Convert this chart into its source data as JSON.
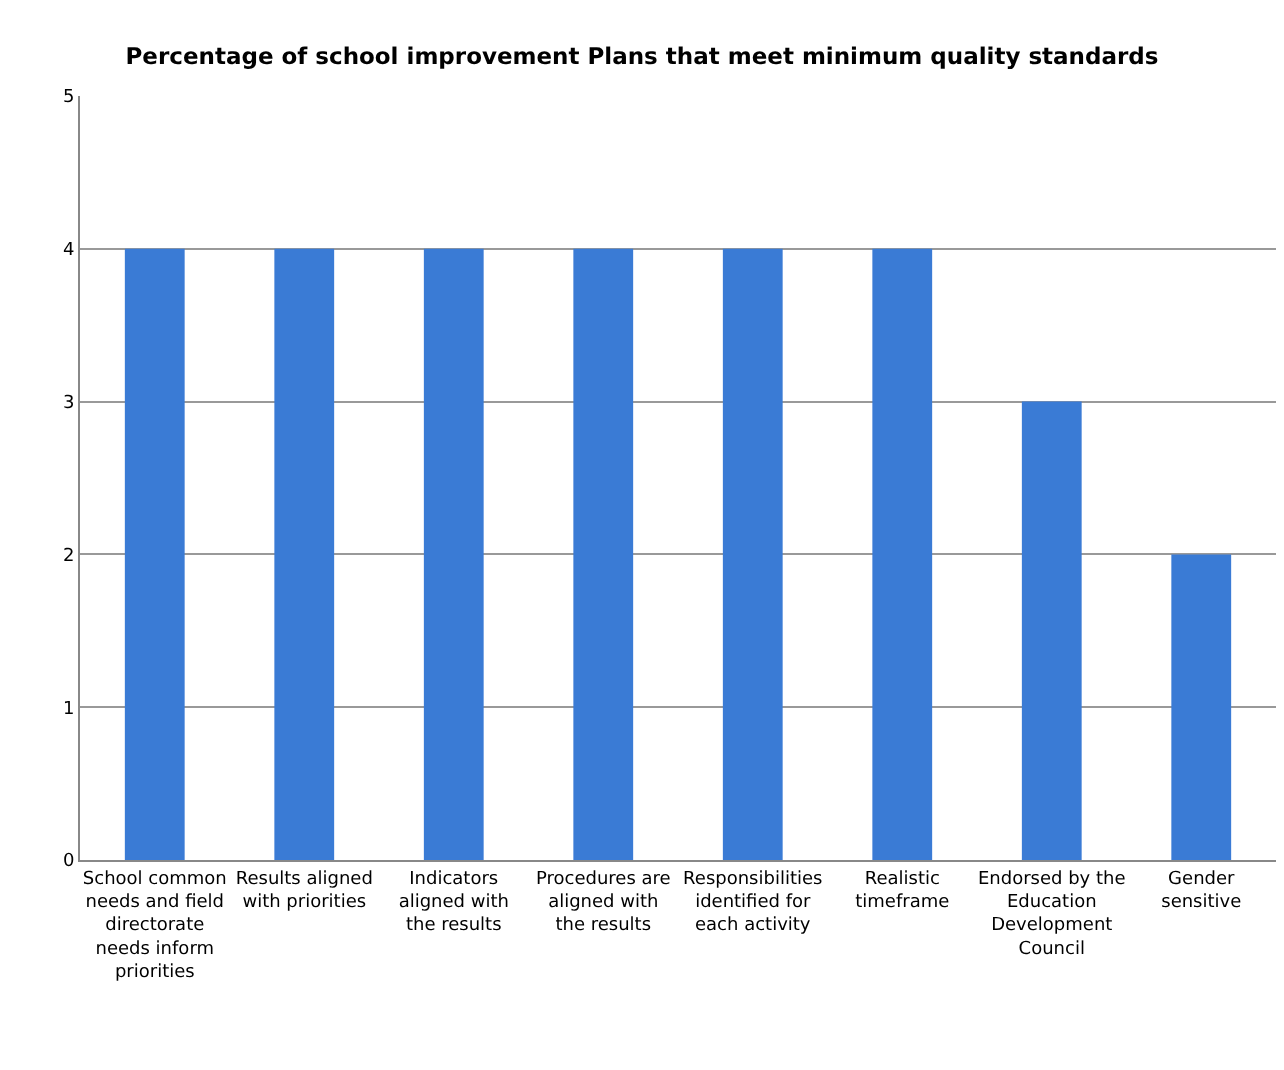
{
  "chart_data": {
    "type": "bar",
    "title": "Percentage of school improvement Plans that meet minimum quality standards",
    "categories": [
      "School common needs and field directorate needs inform priorities",
      "Results aligned with priorities",
      "Indicators aligned with the results",
      "Procedures are aligned with the results",
      "Responsibilities identified for each activity",
      "Realistic timeframe",
      "Endorsed by the Education Development Council",
      "Gender sensitive"
    ],
    "values": [
      4,
      4,
      4,
      4,
      4,
      4,
      3,
      2
    ],
    "color": "#3a7bd5",
    "ylim": [
      0,
      5
    ],
    "yticks": [
      0,
      1,
      2,
      3,
      4,
      5
    ],
    "grid": "y"
  }
}
